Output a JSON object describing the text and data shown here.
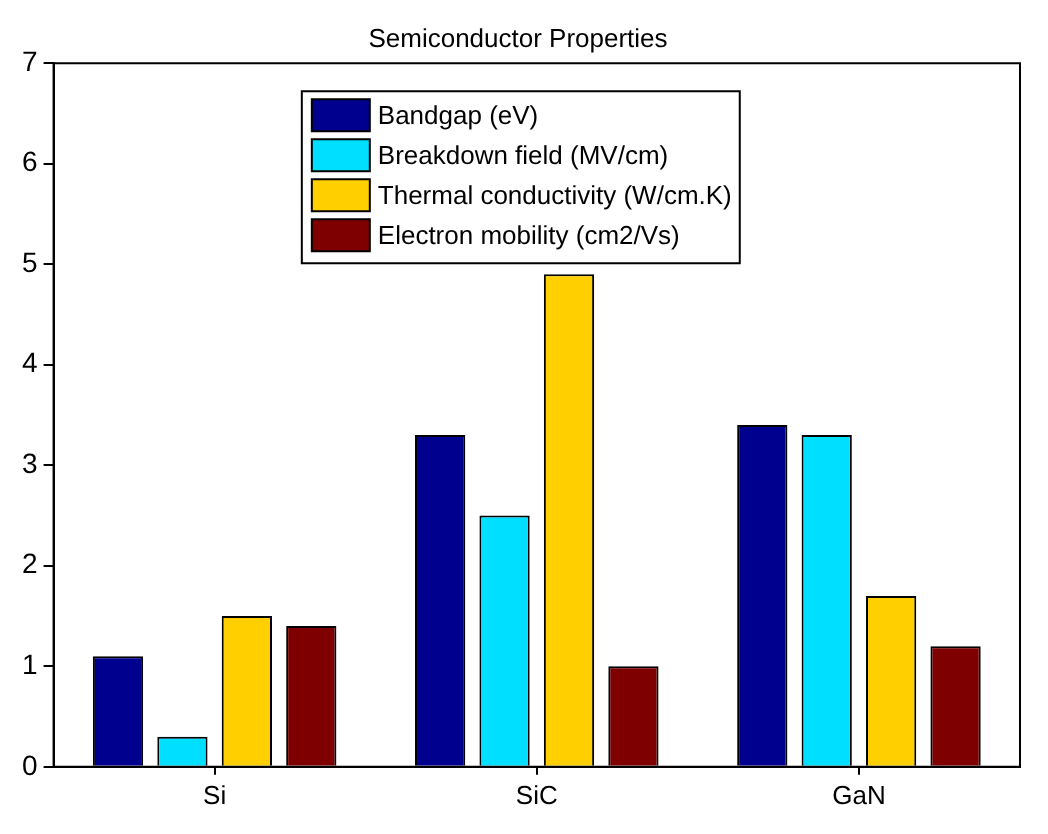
{
  "chart_data": {
    "type": "bar",
    "title": "Semiconductor Properties",
    "categories": [
      "Si",
      "SiC",
      "GaN"
    ],
    "series": [
      {
        "name": "Bandgap (eV)",
        "color": "#00008f",
        "values": [
          1.1,
          3.3,
          3.4
        ]
      },
      {
        "name": "Breakdown field (MV/cm)",
        "color": "#00dfff",
        "values": [
          0.3,
          2.5,
          3.3
        ]
      },
      {
        "name": "Thermal conductivity (W/cm.K)",
        "color": "#ffcf00",
        "values": [
          1.5,
          4.9,
          1.7
        ]
      },
      {
        "name": "Electron mobility (cm2/Vs)",
        "color": "#7f0000",
        "values": [
          1.4,
          1.0,
          1.2
        ]
      }
    ],
    "ylim": [
      0,
      7
    ],
    "yticks": [
      0,
      1,
      2,
      3,
      4,
      5,
      6,
      7
    ],
    "grid": false,
    "legend": "top"
  }
}
